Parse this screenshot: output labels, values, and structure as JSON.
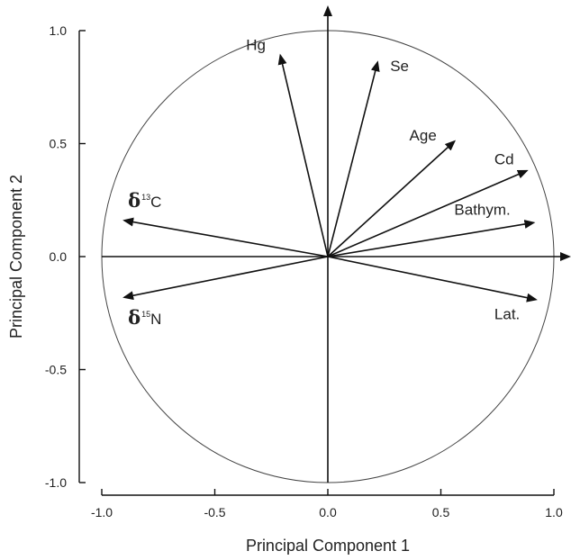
{
  "chart_data": {
    "type": "biplot",
    "xlabel": "Principal Component 1",
    "ylabel": "Principal Component 2",
    "xlim": [
      -1.0,
      1.0
    ],
    "ylim": [
      -1.0,
      1.0
    ],
    "xticks": [
      "-1.0",
      "-0.5",
      "0.0",
      "0.5",
      "1.0"
    ],
    "yticks": [
      "1.0",
      "0.5",
      "0.0",
      "-0.5",
      "-1.0"
    ],
    "unit_circle_radius": 1.0,
    "grid": false,
    "vectors": [
      {
        "label": "Hg",
        "x": -0.21,
        "y": 0.89
      },
      {
        "label": "Se",
        "x": 0.22,
        "y": 0.86
      },
      {
        "label": "Age",
        "x": 0.56,
        "y": 0.51
      },
      {
        "label": "Cd",
        "x": 0.88,
        "y": 0.38
      },
      {
        "label": "Bathym.",
        "x": 0.91,
        "y": 0.15
      },
      {
        "label": "Lat.",
        "x": 0.92,
        "y": -0.19
      },
      {
        "label": "δ13C",
        "symbol": "δ",
        "superscript": "13",
        "element": "C",
        "x": -0.9,
        "y": 0.16
      },
      {
        "label": "δ15N",
        "symbol": "δ",
        "superscript": "15",
        "element": "N",
        "x": -0.9,
        "y": -0.18
      }
    ]
  }
}
